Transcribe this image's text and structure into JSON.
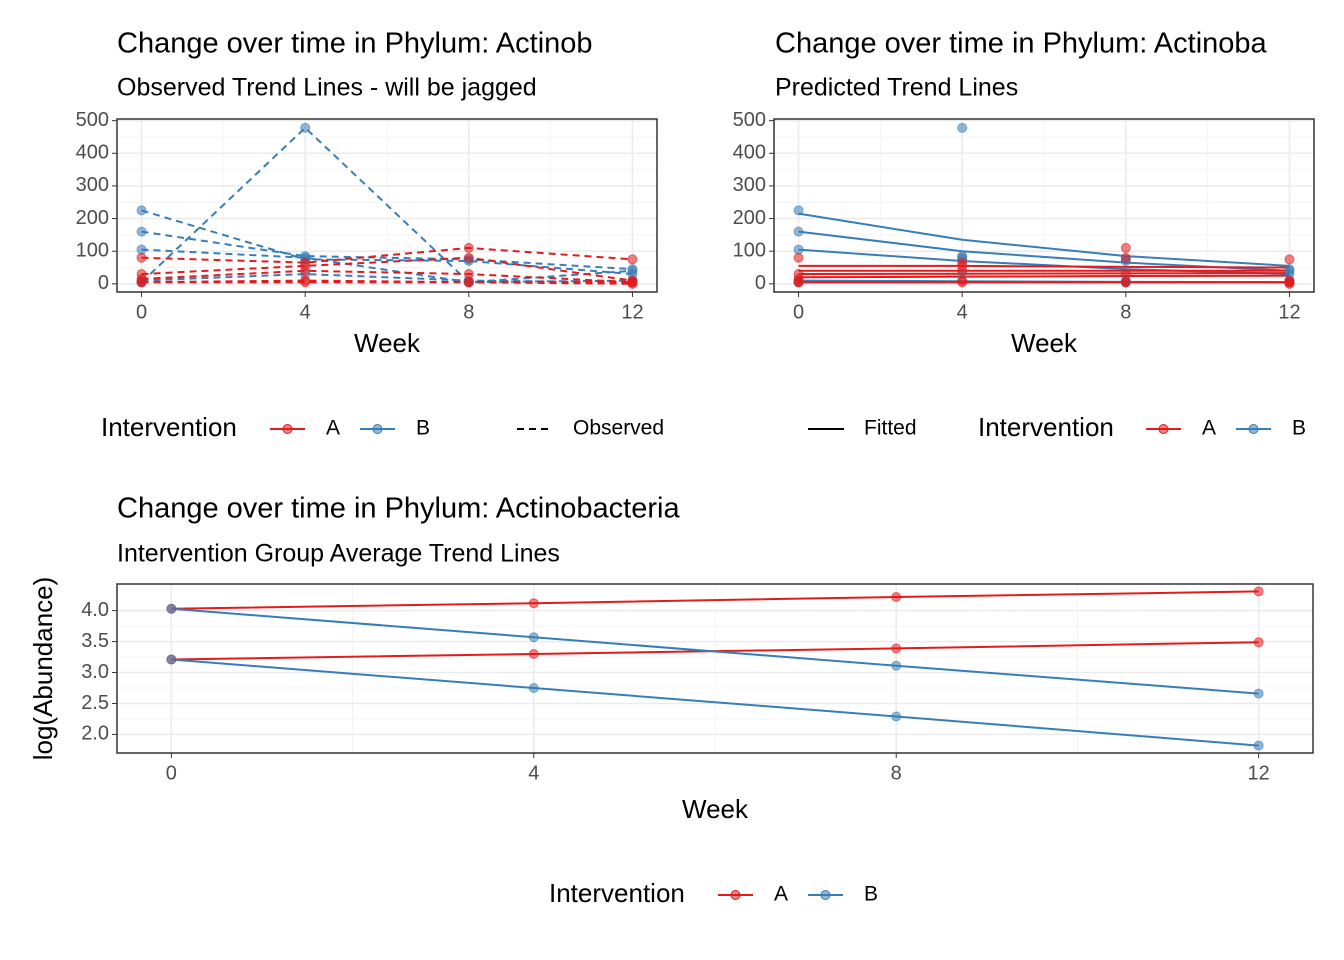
{
  "chart_data": [
    {
      "type": "line",
      "title": "Change over time in Phylum: Actinob",
      "subtitle": "Observed Trend Lines - will be jagged",
      "x_label": "Week",
      "x": [
        0,
        4,
        8,
        12
      ],
      "xlim": [
        -0.6,
        12.6
      ],
      "xticks": [
        0,
        4,
        8,
        12
      ],
      "ylim": [
        -25,
        505
      ],
      "yticks": [
        0,
        100,
        200,
        300,
        400,
        500
      ],
      "grid": true,
      "dashed": true,
      "legend": {
        "title": "Intervention",
        "entries": [
          {
            "name": "A",
            "color": "#E41A1C"
          },
          {
            "name": "B",
            "color": "#377EB8"
          }
        ],
        "linetype": "Observed"
      },
      "series": [
        {
          "color": "#377EB8",
          "values": [
            5,
            478,
            5,
            10
          ]
        },
        {
          "color": "#377EB8",
          "values": [
            225,
            75,
            70,
            30
          ]
        },
        {
          "color": "#377EB8",
          "values": [
            160,
            85,
            75,
            45
          ]
        },
        {
          "color": "#377EB8",
          "values": [
            105,
            80,
            5,
            40
          ]
        },
        {
          "color": "#377EB8",
          "values": [
            10,
            30,
            10,
            5
          ]
        },
        {
          "color": "#E41A1C",
          "values": [
            80,
            65,
            110,
            75
          ]
        },
        {
          "color": "#E41A1C",
          "values": [
            30,
            55,
            80,
            10
          ]
        },
        {
          "color": "#E41A1C",
          "values": [
            15,
            40,
            30,
            5
          ]
        },
        {
          "color": "#E41A1C",
          "values": [
            5,
            10,
            5,
            5
          ]
        },
        {
          "color": "#E41A1C",
          "values": [
            5,
            5,
            5,
            0
          ]
        }
      ]
    },
    {
      "type": "line",
      "title": "Change over time in Phylum: Actinoba",
      "subtitle": "Predicted Trend Lines",
      "x_label": "Week",
      "x": [
        0,
        4,
        8,
        12
      ],
      "xlim": [
        -0.6,
        12.6
      ],
      "xticks": [
        0,
        4,
        8,
        12
      ],
      "ylim": [
        -25,
        505
      ],
      "yticks": [
        0,
        100,
        200,
        300,
        400,
        500
      ],
      "grid": true,
      "dashed": false,
      "legend": {
        "title": "Intervention",
        "entries": [
          {
            "name": "A",
            "color": "#E41A1C"
          },
          {
            "name": "B",
            "color": "#377EB8"
          }
        ],
        "linetype": "Fitted"
      },
      "series": [
        {
          "color": "#377EB8",
          "values": [
            5,
            478,
            5,
            10
          ],
          "fitted": [
            10,
            8,
            6,
            5
          ]
        },
        {
          "color": "#377EB8",
          "values": [
            225,
            75,
            70,
            30
          ],
          "fitted": [
            215,
            135,
            85,
            55
          ]
        },
        {
          "color": "#377EB8",
          "values": [
            160,
            85,
            75,
            45
          ],
          "fitted": [
            160,
            100,
            65,
            40
          ]
        },
        {
          "color": "#377EB8",
          "values": [
            105,
            80,
            5,
            40
          ],
          "fitted": [
            105,
            70,
            45,
            30
          ]
        },
        {
          "color": "#377EB8",
          "values": [
            10,
            30,
            10,
            5
          ],
          "fitted": [
            5,
            5,
            5,
            5
          ]
        },
        {
          "color": "#E41A1C",
          "values": [
            80,
            65,
            110,
            75
          ],
          "fitted": [
            55,
            55,
            52,
            50
          ]
        },
        {
          "color": "#E41A1C",
          "values": [
            30,
            55,
            80,
            10
          ],
          "fitted": [
            40,
            40,
            40,
            40
          ]
        },
        {
          "color": "#E41A1C",
          "values": [
            15,
            40,
            30,
            5
          ],
          "fitted": [
            30,
            31,
            32,
            33
          ]
        },
        {
          "color": "#E41A1C",
          "values": [
            5,
            10,
            5,
            5
          ],
          "fitted": [
            20,
            22,
            24,
            25
          ]
        },
        {
          "color": "#E41A1C",
          "values": [
            5,
            5,
            5,
            0
          ],
          "fitted": [
            5,
            5,
            5,
            5
          ]
        }
      ]
    },
    {
      "type": "line",
      "title": "Change over time in Phylum: Actinobacteria",
      "subtitle": "Intervention Group Average Trend Lines",
      "x_label": "Week",
      "y_label": "log(Abundance)",
      "x": [
        0,
        4,
        8,
        12
      ],
      "xlim": [
        -0.6,
        12.6
      ],
      "xticks": [
        0,
        4,
        8,
        12
      ],
      "ylim": [
        1.7,
        4.43
      ],
      "yticks": [
        {
          "value": 2,
          "label": "2.0"
        },
        2.5,
        {
          "value": 3,
          "label": "3.0"
        },
        3.5,
        {
          "value": 4,
          "label": "4.0"
        }
      ],
      "grid": true,
      "dashed": false,
      "legend": {
        "title": "Intervention",
        "entries": [
          {
            "name": "A",
            "color": "#E41A1C"
          },
          {
            "name": "B",
            "color": "#377EB8"
          }
        ]
      },
      "series": [
        {
          "color": "#E41A1C",
          "values": [
            4.03,
            4.12,
            4.22,
            4.31
          ]
        },
        {
          "color": "#E41A1C",
          "values": [
            3.21,
            3.3,
            3.39,
            3.49
          ]
        },
        {
          "color": "#377EB8",
          "values": [
            4.03,
            3.57,
            3.11,
            2.66
          ]
        },
        {
          "color": "#377EB8",
          "values": [
            3.21,
            2.75,
            2.29,
            1.82
          ]
        }
      ]
    }
  ]
}
